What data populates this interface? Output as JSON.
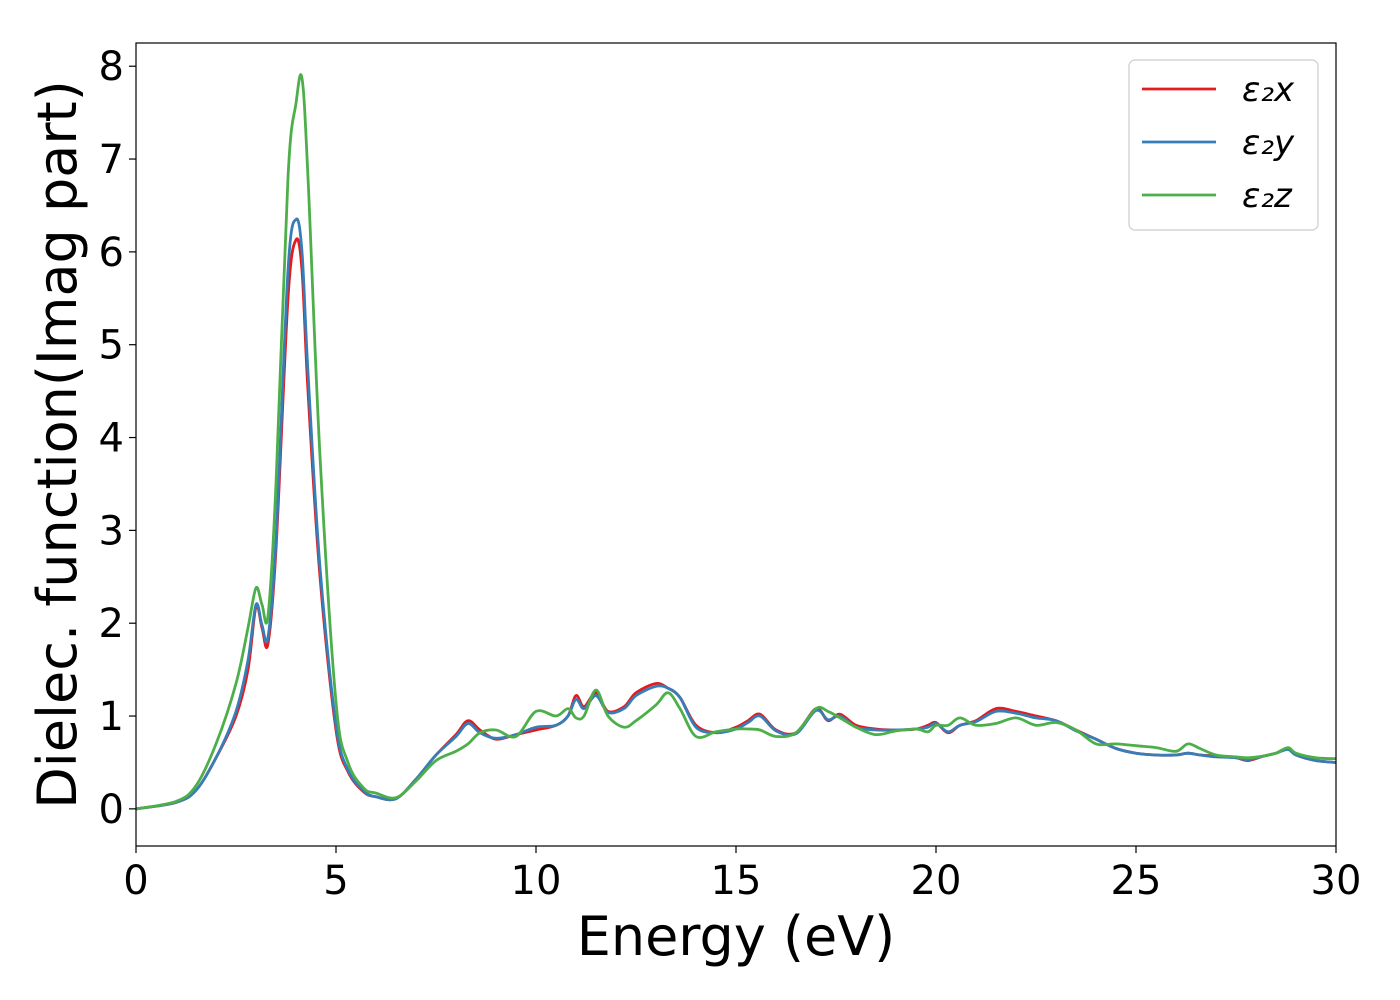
{
  "chart_data": {
    "type": "line",
    "xlabel": "Energy (eV)",
    "ylabel": "Dielec. function(Imag part)",
    "xlim": [
      0,
      30
    ],
    "ylim": [
      -0.4,
      8.25
    ],
    "xticks": [
      0,
      5,
      10,
      15,
      20,
      25,
      30
    ],
    "yticks": [
      0,
      1,
      2,
      3,
      4,
      5,
      6,
      7,
      8
    ],
    "grid": false,
    "legend_position": "top-right",
    "x": [
      0,
      1,
      1.5,
      2,
      2.5,
      2.8,
      3.0,
      3.15,
      3.3,
      3.5,
      3.8,
      4.0,
      4.15,
      4.3,
      4.6,
      5.0,
      5.3,
      5.7,
      6.0,
      6.5,
      7.0,
      7.5,
      8.0,
      8.3,
      8.6,
      9.0,
      9.5,
      10.0,
      10.5,
      10.8,
      11.0,
      11.2,
      11.5,
      11.8,
      12.2,
      12.5,
      13.0,
      13.3,
      13.6,
      14.0,
      14.5,
      15.0,
      15.3,
      15.6,
      16.0,
      16.5,
      17.0,
      17.3,
      17.6,
      18.0,
      18.5,
      19.0,
      19.5,
      19.8,
      20.0,
      20.3,
      20.6,
      21.0,
      21.5,
      22.0,
      22.5,
      23.0,
      23.5,
      24.0,
      24.5,
      25.0,
      25.5,
      26.0,
      26.3,
      26.6,
      27.0,
      27.5,
      27.8,
      28.2,
      28.5,
      28.8,
      29.0,
      29.5,
      30.0
    ],
    "series": [
      {
        "name": "ε₂x",
        "color": "#e41a1c",
        "values": [
          0,
          0.07,
          0.2,
          0.55,
          1.0,
          1.5,
          2.18,
          1.95,
          1.78,
          2.8,
          5.5,
          6.13,
          5.8,
          4.5,
          2.5,
          0.85,
          0.4,
          0.18,
          0.13,
          0.11,
          0.32,
          0.58,
          0.8,
          0.95,
          0.85,
          0.75,
          0.8,
          0.85,
          0.9,
          1.0,
          1.22,
          1.1,
          1.25,
          1.05,
          1.1,
          1.25,
          1.35,
          1.3,
          1.2,
          0.9,
          0.82,
          0.88,
          0.95,
          1.02,
          0.85,
          0.82,
          1.08,
          0.95,
          1.02,
          0.9,
          0.86,
          0.85,
          0.86,
          0.9,
          0.93,
          0.82,
          0.9,
          0.95,
          1.08,
          1.05,
          1.0,
          0.95,
          0.85,
          0.75,
          0.65,
          0.6,
          0.58,
          0.58,
          0.6,
          0.58,
          0.57,
          0.55,
          0.52,
          0.57,
          0.6,
          0.65,
          0.58,
          0.52,
          0.5
        ]
      },
      {
        "name": "ε₂y",
        "color": "#377eb8",
        "values": [
          0,
          0.07,
          0.2,
          0.55,
          1.05,
          1.6,
          2.2,
          1.98,
          1.85,
          2.9,
          5.8,
          6.35,
          6.0,
          4.7,
          2.6,
          0.9,
          0.42,
          0.19,
          0.13,
          0.11,
          0.32,
          0.58,
          0.78,
          0.92,
          0.82,
          0.76,
          0.8,
          0.88,
          0.9,
          1.0,
          1.18,
          1.08,
          1.22,
          1.04,
          1.08,
          1.22,
          1.32,
          1.3,
          1.2,
          0.88,
          0.82,
          0.86,
          0.93,
          1.0,
          0.84,
          0.81,
          1.06,
          0.96,
          1.0,
          0.88,
          0.85,
          0.85,
          0.86,
          0.88,
          0.92,
          0.83,
          0.9,
          0.94,
          1.05,
          1.03,
          0.98,
          0.95,
          0.84,
          0.75,
          0.65,
          0.6,
          0.58,
          0.58,
          0.6,
          0.58,
          0.56,
          0.55,
          0.53,
          0.57,
          0.6,
          0.64,
          0.58,
          0.52,
          0.5
        ]
      },
      {
        "name": "ε₂z",
        "color": "#4daf4a",
        "values": [
          0,
          0.08,
          0.25,
          0.7,
          1.35,
          1.95,
          2.38,
          2.2,
          2.08,
          3.5,
          6.8,
          7.6,
          7.87,
          6.8,
          3.8,
          1.15,
          0.5,
          0.22,
          0.17,
          0.12,
          0.3,
          0.52,
          0.62,
          0.7,
          0.82,
          0.85,
          0.78,
          1.05,
          1.0,
          1.08,
          0.98,
          1.0,
          1.28,
          1.0,
          0.88,
          0.95,
          1.12,
          1.25,
          1.08,
          0.78,
          0.83,
          0.86,
          0.86,
          0.85,
          0.78,
          0.82,
          1.08,
          1.05,
          0.98,
          0.88,
          0.8,
          0.84,
          0.86,
          0.83,
          0.9,
          0.9,
          0.98,
          0.9,
          0.92,
          0.98,
          0.9,
          0.93,
          0.85,
          0.7,
          0.7,
          0.68,
          0.66,
          0.62,
          0.7,
          0.65,
          0.58,
          0.56,
          0.55,
          0.57,
          0.6,
          0.66,
          0.6,
          0.55,
          0.54
        ]
      }
    ]
  }
}
